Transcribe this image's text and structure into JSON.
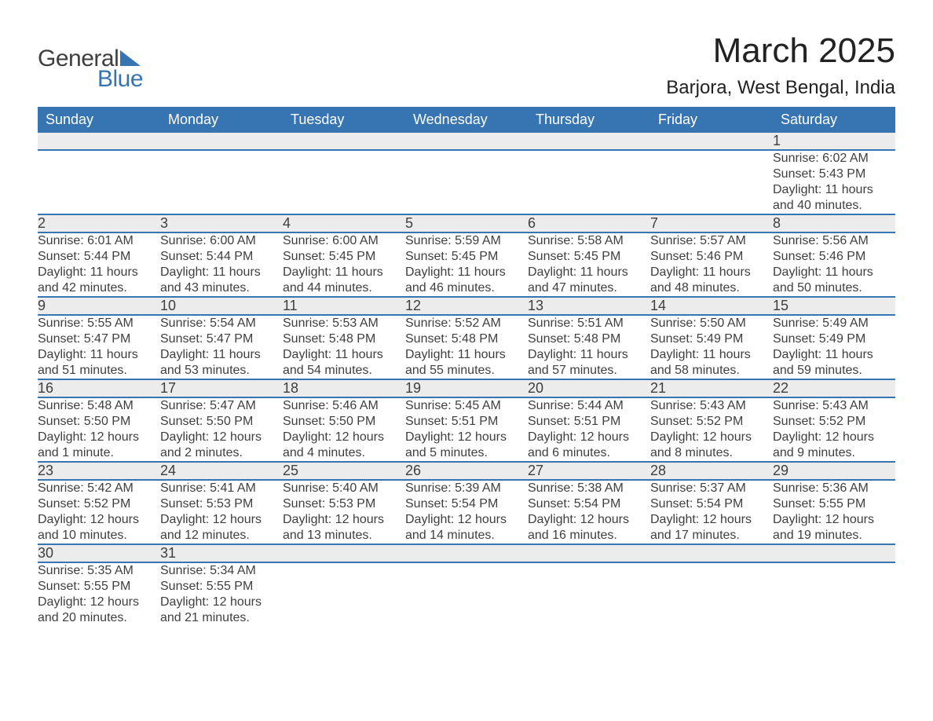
{
  "logo": {
    "word1": "General",
    "word2": "Blue"
  },
  "header": {
    "month_title": "March 2025",
    "location": "Barjora, West Bengal, India"
  },
  "calendar": {
    "colors": {
      "header_bg": "#3774b2",
      "header_fg": "#ffffff",
      "row_divider": "#3774b2",
      "daynum_bg": "#ececec",
      "text": "#3f3f3f",
      "bg": "#ffffff"
    },
    "font": {
      "day_header_size_pt": 14,
      "cell_size_pt": 12,
      "title_size_pt": 33,
      "location_size_pt": 18
    },
    "day_headers": [
      "Sunday",
      "Monday",
      "Tuesday",
      "Wednesday",
      "Thursday",
      "Friday",
      "Saturday"
    ],
    "first_day_column_index": 6,
    "days": [
      {
        "n": "1",
        "sunrise": "Sunrise: 6:02 AM",
        "sunset": "Sunset: 5:43 PM",
        "daylight": "Daylight: 11 hours and 40 minutes."
      },
      {
        "n": "2",
        "sunrise": "Sunrise: 6:01 AM",
        "sunset": "Sunset: 5:44 PM",
        "daylight": "Daylight: 11 hours and 42 minutes."
      },
      {
        "n": "3",
        "sunrise": "Sunrise: 6:00 AM",
        "sunset": "Sunset: 5:44 PM",
        "daylight": "Daylight: 11 hours and 43 minutes."
      },
      {
        "n": "4",
        "sunrise": "Sunrise: 6:00 AM",
        "sunset": "Sunset: 5:45 PM",
        "daylight": "Daylight: 11 hours and 44 minutes."
      },
      {
        "n": "5",
        "sunrise": "Sunrise: 5:59 AM",
        "sunset": "Sunset: 5:45 PM",
        "daylight": "Daylight: 11 hours and 46 minutes."
      },
      {
        "n": "6",
        "sunrise": "Sunrise: 5:58 AM",
        "sunset": "Sunset: 5:45 PM",
        "daylight": "Daylight: 11 hours and 47 minutes."
      },
      {
        "n": "7",
        "sunrise": "Sunrise: 5:57 AM",
        "sunset": "Sunset: 5:46 PM",
        "daylight": "Daylight: 11 hours and 48 minutes."
      },
      {
        "n": "8",
        "sunrise": "Sunrise: 5:56 AM",
        "sunset": "Sunset: 5:46 PM",
        "daylight": "Daylight: 11 hours and 50 minutes."
      },
      {
        "n": "9",
        "sunrise": "Sunrise: 5:55 AM",
        "sunset": "Sunset: 5:47 PM",
        "daylight": "Daylight: 11 hours and 51 minutes."
      },
      {
        "n": "10",
        "sunrise": "Sunrise: 5:54 AM",
        "sunset": "Sunset: 5:47 PM",
        "daylight": "Daylight: 11 hours and 53 minutes."
      },
      {
        "n": "11",
        "sunrise": "Sunrise: 5:53 AM",
        "sunset": "Sunset: 5:48 PM",
        "daylight": "Daylight: 11 hours and 54 minutes."
      },
      {
        "n": "12",
        "sunrise": "Sunrise: 5:52 AM",
        "sunset": "Sunset: 5:48 PM",
        "daylight": "Daylight: 11 hours and 55 minutes."
      },
      {
        "n": "13",
        "sunrise": "Sunrise: 5:51 AM",
        "sunset": "Sunset: 5:48 PM",
        "daylight": "Daylight: 11 hours and 57 minutes."
      },
      {
        "n": "14",
        "sunrise": "Sunrise: 5:50 AM",
        "sunset": "Sunset: 5:49 PM",
        "daylight": "Daylight: 11 hours and 58 minutes."
      },
      {
        "n": "15",
        "sunrise": "Sunrise: 5:49 AM",
        "sunset": "Sunset: 5:49 PM",
        "daylight": "Daylight: 11 hours and 59 minutes."
      },
      {
        "n": "16",
        "sunrise": "Sunrise: 5:48 AM",
        "sunset": "Sunset: 5:50 PM",
        "daylight": "Daylight: 12 hours and 1 minute."
      },
      {
        "n": "17",
        "sunrise": "Sunrise: 5:47 AM",
        "sunset": "Sunset: 5:50 PM",
        "daylight": "Daylight: 12 hours and 2 minutes."
      },
      {
        "n": "18",
        "sunrise": "Sunrise: 5:46 AM",
        "sunset": "Sunset: 5:50 PM",
        "daylight": "Daylight: 12 hours and 4 minutes."
      },
      {
        "n": "19",
        "sunrise": "Sunrise: 5:45 AM",
        "sunset": "Sunset: 5:51 PM",
        "daylight": "Daylight: 12 hours and 5 minutes."
      },
      {
        "n": "20",
        "sunrise": "Sunrise: 5:44 AM",
        "sunset": "Sunset: 5:51 PM",
        "daylight": "Daylight: 12 hours and 6 minutes."
      },
      {
        "n": "21",
        "sunrise": "Sunrise: 5:43 AM",
        "sunset": "Sunset: 5:52 PM",
        "daylight": "Daylight: 12 hours and 8 minutes."
      },
      {
        "n": "22",
        "sunrise": "Sunrise: 5:43 AM",
        "sunset": "Sunset: 5:52 PM",
        "daylight": "Daylight: 12 hours and 9 minutes."
      },
      {
        "n": "23",
        "sunrise": "Sunrise: 5:42 AM",
        "sunset": "Sunset: 5:52 PM",
        "daylight": "Daylight: 12 hours and 10 minutes."
      },
      {
        "n": "24",
        "sunrise": "Sunrise: 5:41 AM",
        "sunset": "Sunset: 5:53 PM",
        "daylight": "Daylight: 12 hours and 12 minutes."
      },
      {
        "n": "25",
        "sunrise": "Sunrise: 5:40 AM",
        "sunset": "Sunset: 5:53 PM",
        "daylight": "Daylight: 12 hours and 13 minutes."
      },
      {
        "n": "26",
        "sunrise": "Sunrise: 5:39 AM",
        "sunset": "Sunset: 5:54 PM",
        "daylight": "Daylight: 12 hours and 14 minutes."
      },
      {
        "n": "27",
        "sunrise": "Sunrise: 5:38 AM",
        "sunset": "Sunset: 5:54 PM",
        "daylight": "Daylight: 12 hours and 16 minutes."
      },
      {
        "n": "28",
        "sunrise": "Sunrise: 5:37 AM",
        "sunset": "Sunset: 5:54 PM",
        "daylight": "Daylight: 12 hours and 17 minutes."
      },
      {
        "n": "29",
        "sunrise": "Sunrise: 5:36 AM",
        "sunset": "Sunset: 5:55 PM",
        "daylight": "Daylight: 12 hours and 19 minutes."
      },
      {
        "n": "30",
        "sunrise": "Sunrise: 5:35 AM",
        "sunset": "Sunset: 5:55 PM",
        "daylight": "Daylight: 12 hours and 20 minutes."
      },
      {
        "n": "31",
        "sunrise": "Sunrise: 5:34 AM",
        "sunset": "Sunset: 5:55 PM",
        "daylight": "Daylight: 12 hours and 21 minutes."
      }
    ]
  }
}
